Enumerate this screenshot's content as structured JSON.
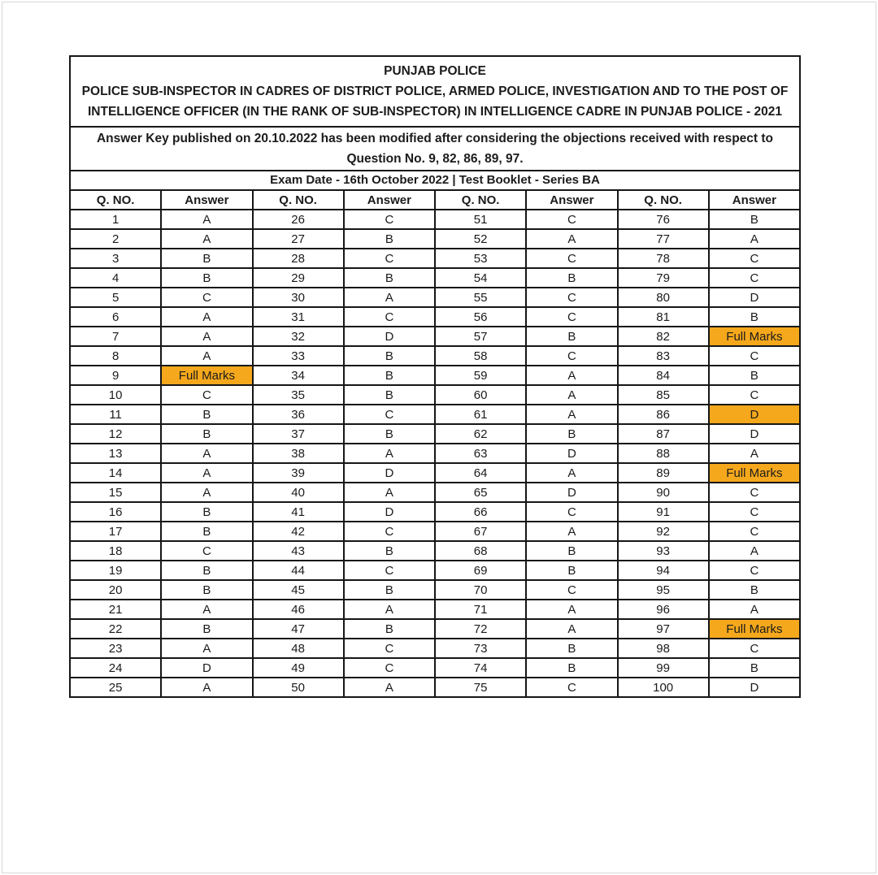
{
  "header": {
    "org": "PUNJAB POLICE",
    "title": "POLICE SUB-INSPECTOR IN CADRES OF DISTRICT POLICE, ARMED POLICE, INVESTIGATION AND TO THE POST OF INTELLIGENCE OFFICER (IN THE RANK OF SUB-INSPECTOR) IN INTELLIGENCE CADRE IN PUNJAB POLICE - 2021",
    "note": "Answer Key published on 20.10.2022 has been modified after considering the objections received with respect to Question No. 9, 82, 86, 89, 97.",
    "exam_info": "Exam Date - 16th October 2022 | Test Booklet - Series BA"
  },
  "table": {
    "col_headers": [
      "Q. NO.",
      "Answer"
    ],
    "column_blocks": 4,
    "rows_per_block": 25,
    "highlight_color": "#F5A81C",
    "highlighted_questions": [
      9,
      82,
      86,
      89,
      97
    ],
    "answers": [
      "A",
      "A",
      "B",
      "B",
      "C",
      "A",
      "A",
      "A",
      "Full Marks",
      "C",
      "B",
      "B",
      "A",
      "A",
      "A",
      "B",
      "B",
      "C",
      "B",
      "B",
      "A",
      "B",
      "A",
      "D",
      "A",
      "C",
      "B",
      "C",
      "B",
      "A",
      "C",
      "D",
      "B",
      "B",
      "B",
      "C",
      "B",
      "A",
      "D",
      "A",
      "D",
      "C",
      "B",
      "C",
      "B",
      "A",
      "B",
      "C",
      "C",
      "A",
      "C",
      "A",
      "C",
      "B",
      "C",
      "C",
      "B",
      "C",
      "A",
      "A",
      "A",
      "B",
      "D",
      "A",
      "D",
      "C",
      "A",
      "B",
      "B",
      "C",
      "A",
      "A",
      "B",
      "B",
      "C",
      "B",
      "A",
      "C",
      "C",
      "D",
      "B",
      "Full Marks",
      "C",
      "B",
      "C",
      "D",
      "D",
      "A",
      "Full Marks",
      "C",
      "C",
      "C",
      "A",
      "C",
      "B",
      "A",
      "Full Marks",
      "C",
      "B",
      "D"
    ]
  }
}
